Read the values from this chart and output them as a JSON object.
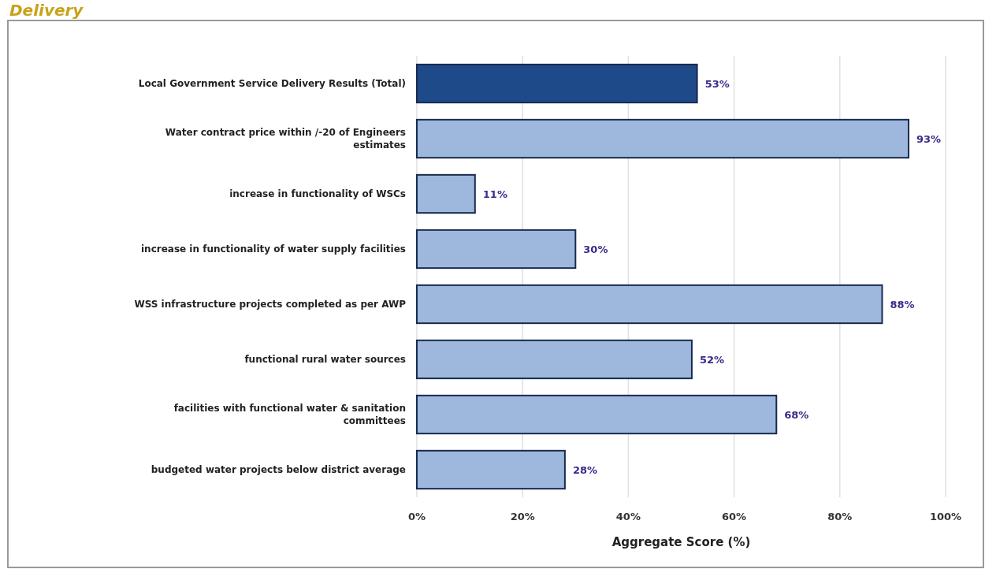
{
  "chart_data": {
    "type": "bar",
    "orientation": "horizontal",
    "title": "Delivery",
    "xlabel": "Aggregate Score (%)",
    "categories": [
      "Local Government Service Delivery Results (Total)",
      "Water contract price within /-20 of Engineers estimates",
      "increase in functionality of WSCs",
      "increase in functionality of water supply facilities",
      "WSS infrastructure projects completed as per AWP",
      "functional rural water sources",
      "facilities with functional water & sanitation committees",
      "budgeted water projects below district average"
    ],
    "values": [
      53,
      93,
      11,
      30,
      88,
      52,
      68,
      28
    ],
    "value_labels": [
      "53%",
      "93%",
      "11%",
      "30%",
      "88%",
      "52%",
      "68%",
      "28%"
    ],
    "colors": [
      "#1f4a8a",
      "#9db8dc",
      "#9db8dc",
      "#9db8dc",
      "#9db8dc",
      "#9db8dc",
      "#9db8dc",
      "#9db8dc"
    ],
    "xlim": [
      0,
      100
    ],
    "xticks": [
      {
        "value": 0,
        "label": "0%"
      },
      {
        "value": 20,
        "label": "20%"
      },
      {
        "value": 40,
        "label": "40%"
      },
      {
        "value": 60,
        "label": "60%"
      },
      {
        "value": 80,
        "label": "80%"
      },
      {
        "value": 100,
        "label": "100%"
      }
    ],
    "grid": "x"
  }
}
